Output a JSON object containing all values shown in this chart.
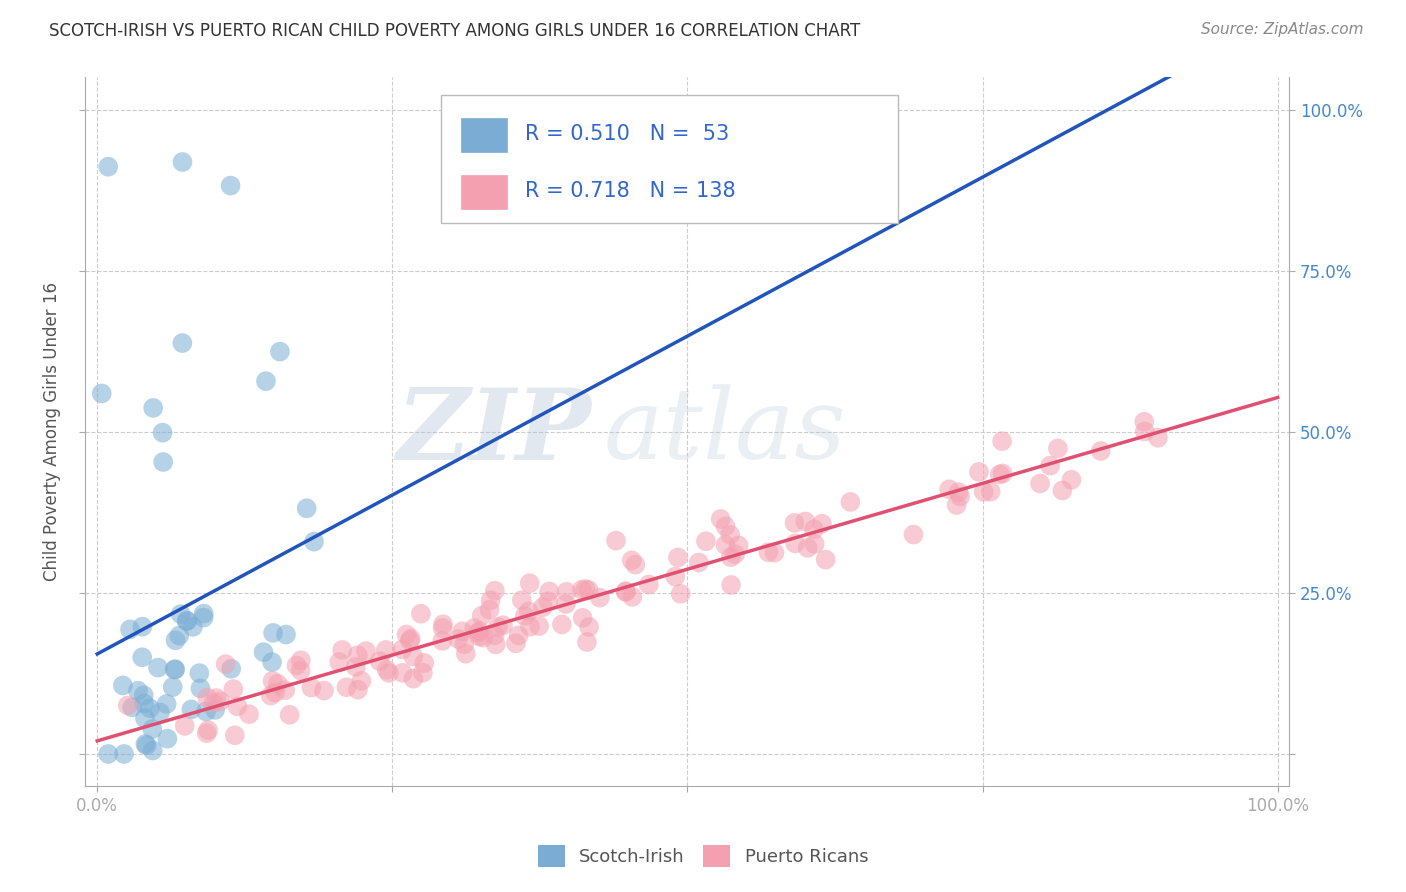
{
  "title": "SCOTCH-IRISH VS PUERTO RICAN CHILD POVERTY AMONG GIRLS UNDER 16 CORRELATION CHART",
  "source": "Source: ZipAtlas.com",
  "ylabel": "Child Poverty Among Girls Under 16",
  "scotch_irish_R": 0.51,
  "scotch_irish_N": 53,
  "puerto_rican_R": 0.718,
  "puerto_rican_N": 138,
  "scotch_irish_color": "#7BADD4",
  "puerto_rican_color": "#F4A0B0",
  "scotch_irish_line_color": "#2255BB",
  "puerto_rican_line_color": "#E05070",
  "axis_label_color": "#4488CC",
  "legend_text_color": "#222222",
  "legend_value_color": "#3366CC",
  "title_color": "#333333",
  "source_color": "#888888",
  "watermark_zip_color": "#AABFD4",
  "watermark_atlas_color": "#B8CDD8",
  "background_color": "#FFFFFF",
  "grid_color": "#CCCCCC",
  "scotch_irish_seed": 77,
  "puerto_rican_seed": 55
}
